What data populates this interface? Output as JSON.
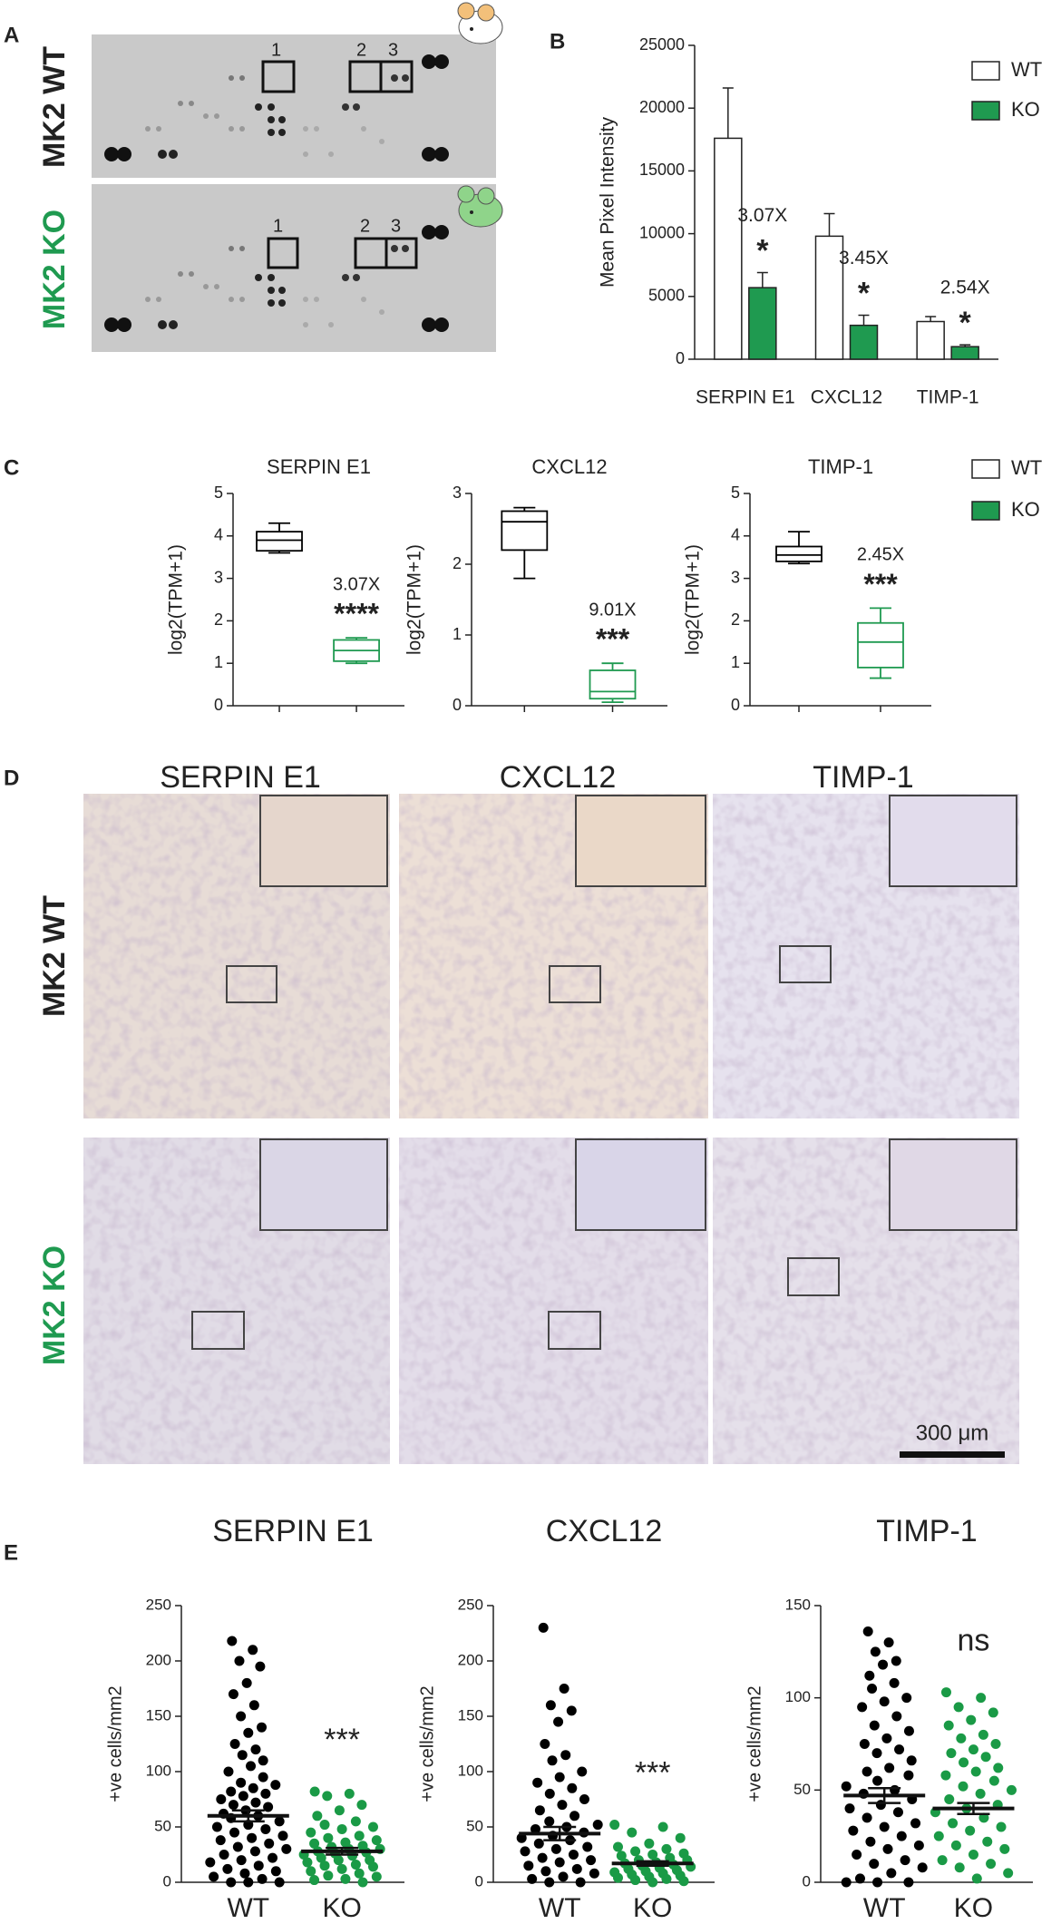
{
  "panel_labels": [
    "A",
    "B",
    "C",
    "D",
    "E"
  ],
  "blots": {
    "row_labels": [
      "MK2 WT",
      "MK2 KO"
    ],
    "box_labels": [
      "1",
      "2",
      "3"
    ]
  },
  "micrographs": {
    "columns": [
      "SERPIN E1",
      "CXCL12",
      "TIMP-1"
    ],
    "rows": [
      "MK2 WT",
      "MK2 KO"
    ],
    "scale_bar": "300 μm"
  },
  "chart_data": [
    {
      "type": "bar",
      "ylabel": "Mean Pixel Intensity",
      "categories": [
        "SERPIN E1",
        "CXCL12",
        "TIMP-1"
      ],
      "series": [
        {
          "name": "WT",
          "color": "#ffffff",
          "values": [
            17600,
            9800,
            3000
          ],
          "errors": [
            4000,
            1800,
            400
          ]
        },
        {
          "name": "KO",
          "color": "#1f9a50",
          "values": [
            5700,
            2700,
            1000
          ],
          "errors": [
            1200,
            800,
            150
          ]
        }
      ],
      "annotations": [
        "3.07X",
        "3.45X",
        "2.54X"
      ],
      "significance": [
        "*",
        "*",
        "*"
      ],
      "ylim": [
        0,
        25000
      ],
      "yticks": [
        0,
        5000,
        10000,
        15000,
        20000,
        25000
      ],
      "legend": "upper right"
    },
    {
      "type": "box",
      "title": "SERPIN E1",
      "ylabel": "log2(TPM+1)",
      "series": [
        {
          "color": "#000000",
          "min": 3.6,
          "q1": 3.65,
          "median": 3.9,
          "q3": 4.1,
          "max": 4.3
        },
        {
          "color": "#1f9a50",
          "min": 1.0,
          "q1": 1.05,
          "median": 1.3,
          "q3": 1.55,
          "max": 1.6
        }
      ],
      "annotation": "3.07X",
      "significance": "****",
      "ylim": [
        0,
        5
      ],
      "yticks": [
        0,
        1,
        2,
        3,
        4,
        5
      ]
    },
    {
      "type": "box",
      "title": "CXCL12",
      "ylabel": "log2(TPM+1)",
      "series": [
        {
          "color": "#000000",
          "min": 1.8,
          "q1": 2.2,
          "median": 2.6,
          "q3": 2.75,
          "max": 2.8
        },
        {
          "color": "#1f9a50",
          "min": 0.05,
          "q1": 0.1,
          "median": 0.2,
          "q3": 0.5,
          "max": 0.6
        }
      ],
      "annotation": "9.01X",
      "significance": "***",
      "ylim": [
        0,
        3
      ],
      "yticks": [
        0,
        1,
        2,
        3
      ]
    },
    {
      "type": "box",
      "title": "TIMP-1",
      "ylabel": "log2(TPM+1)",
      "series": [
        {
          "name": "WT",
          "color": "#000000",
          "min": 3.35,
          "q1": 3.4,
          "median": 3.55,
          "q3": 3.75,
          "max": 4.1
        },
        {
          "name": "KO",
          "color": "#1f9a50",
          "min": 0.65,
          "q1": 0.9,
          "median": 1.5,
          "q3": 1.95,
          "max": 2.3
        }
      ],
      "annotation": "2.45X",
      "significance": "***",
      "ylim": [
        0,
        5
      ],
      "yticks": [
        0,
        1,
        2,
        3,
        4,
        5
      ],
      "legend": "right"
    },
    {
      "type": "strip",
      "title": "SERPIN E1",
      "ylabel": "+ve cells/mm2",
      "categories": [
        "WT",
        "KO"
      ],
      "series": [
        {
          "color": "#000000",
          "mean": 60,
          "sem": 5,
          "values": [
            218,
            210,
            200,
            195,
            180,
            170,
            160,
            150,
            140,
            135,
            125,
            120,
            115,
            110,
            105,
            100,
            95,
            90,
            88,
            85,
            82,
            80,
            78,
            75,
            72,
            70,
            68,
            65,
            62,
            60,
            58,
            55,
            52,
            50,
            48,
            45,
            42,
            40,
            38,
            35,
            32,
            30,
            28,
            25,
            22,
            20,
            18,
            15,
            12,
            10,
            8,
            5,
            3,
            0,
            0,
            0
          ]
        },
        {
          "color": "#1a9a46",
          "mean": 28,
          "sem": 3,
          "values": [
            82,
            80,
            78,
            70,
            65,
            60,
            55,
            52,
            50,
            48,
            45,
            42,
            40,
            38,
            36,
            35,
            33,
            32,
            30,
            30,
            28,
            27,
            26,
            25,
            24,
            22,
            20,
            20,
            18,
            16,
            15,
            14,
            12,
            10,
            8,
            6,
            5,
            3,
            2,
            0
          ]
        }
      ],
      "significance": "***",
      "ylim": [
        0,
        250
      ],
      "yticks": [
        0,
        50,
        100,
        150,
        200,
        250
      ]
    },
    {
      "type": "strip",
      "title": "CXCL12",
      "ylabel": "+ve cells/mm2",
      "categories": [
        "WT",
        "KO"
      ],
      "series": [
        {
          "color": "#000000",
          "mean": 44,
          "sem": 6,
          "values": [
            230,
            175,
            160,
            155,
            145,
            125,
            115,
            110,
            100,
            95,
            90,
            85,
            80,
            75,
            70,
            65,
            60,
            55,
            52,
            50,
            48,
            45,
            42,
            40,
            38,
            35,
            32,
            30,
            28,
            25,
            22,
            20,
            18,
            15,
            12,
            10,
            8,
            5,
            3,
            0,
            0
          ]
        },
        {
          "color": "#1a9a46",
          "mean": 17,
          "sem": 2,
          "values": [
            52,
            50,
            45,
            40,
            35,
            32,
            30,
            28,
            26,
            25,
            24,
            22,
            20,
            20,
            18,
            17,
            16,
            15,
            14,
            13,
            12,
            11,
            10,
            9,
            8,
            7,
            6,
            5,
            4,
            3,
            2,
            1,
            0
          ]
        }
      ],
      "significance": "***",
      "ylim": [
        0,
        250
      ],
      "yticks": [
        0,
        50,
        100,
        150,
        200,
        250
      ]
    },
    {
      "type": "strip",
      "title": "TIMP-1",
      "ylabel": "+ve cells/mm2",
      "categories": [
        "WT",
        "KO"
      ],
      "series": [
        {
          "color": "#000000",
          "mean": 47,
          "sem": 4,
          "values": [
            136,
            130,
            125,
            120,
            118,
            112,
            108,
            105,
            100,
            98,
            95,
            90,
            85,
            82,
            78,
            75,
            72,
            70,
            66,
            62,
            60,
            58,
            55,
            52,
            50,
            48,
            45,
            42,
            40,
            38,
            35,
            32,
            30,
            28,
            25,
            22,
            20,
            18,
            15,
            12,
            10,
            8,
            5,
            2,
            0,
            0,
            0
          ]
        },
        {
          "color": "#1a9a46",
          "mean": 40,
          "sem": 3,
          "values": [
            103,
            100,
            95,
            92,
            88,
            85,
            80,
            78,
            75,
            72,
            70,
            68,
            65,
            62,
            60,
            58,
            55,
            52,
            50,
            48,
            45,
            42,
            40,
            38,
            35,
            32,
            30,
            28,
            25,
            22,
            20,
            18,
            15,
            12,
            10,
            8,
            5,
            2
          ]
        }
      ],
      "significance": "ns",
      "ylim": [
        0,
        150
      ],
      "yticks": [
        0,
        50,
        100,
        150
      ]
    }
  ]
}
